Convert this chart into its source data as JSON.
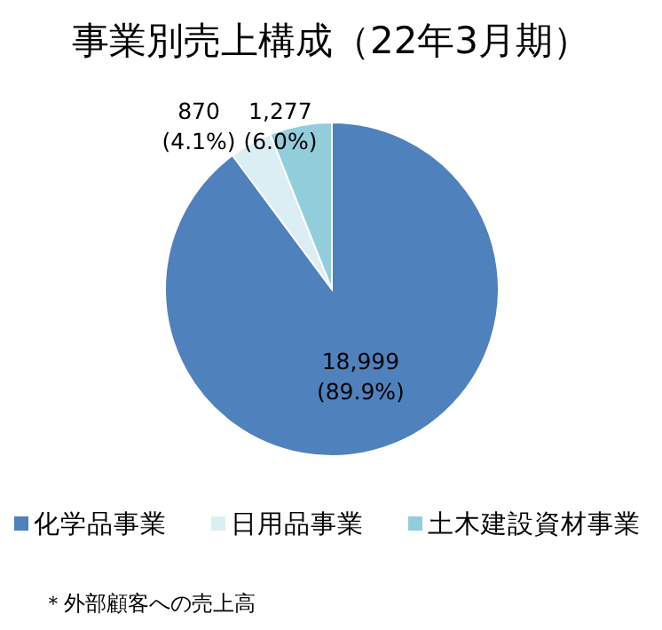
{
  "chart_data": {
    "type": "pie",
    "title": "事業別売上構成（22年3月期）",
    "categories": [
      "化学品事業",
      "日用品事業",
      "土木建設資材事業"
    ],
    "values": [
      18999,
      870,
      1277
    ],
    "colors": [
      "#4f81bd",
      "#dbeef4",
      "#92cddc"
    ],
    "value_labels": [
      "18,999 (89.9%)",
      "870 (4.1%)",
      "1,277 (6.0%)"
    ],
    "legend": "bottom",
    "annotations": [
      "＊外部顧客への売上高"
    ]
  }
}
